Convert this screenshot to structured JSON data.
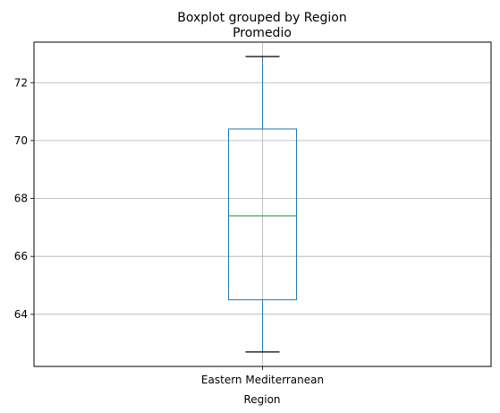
{
  "chart_data": {
    "type": "box",
    "suptitle": "Boxplot grouped by Region",
    "title": "Promedio",
    "xlabel": "Region",
    "ylabel": "",
    "categories": [
      "Eastern Mediterranean"
    ],
    "boxes": [
      {
        "category": "Eastern Mediterranean",
        "whisker_low": 62.7,
        "q1": 64.5,
        "median": 67.4,
        "q3": 70.4,
        "whisker_high": 72.9
      }
    ],
    "ylim": [
      62.2,
      73.4
    ],
    "yticks": [
      64,
      66,
      68,
      70,
      72
    ],
    "grid": true,
    "colors": {
      "box": "#1f77b4",
      "median": "#2ca02c",
      "whisker_cap": "#000000",
      "grid": "#b0b0b0"
    }
  }
}
